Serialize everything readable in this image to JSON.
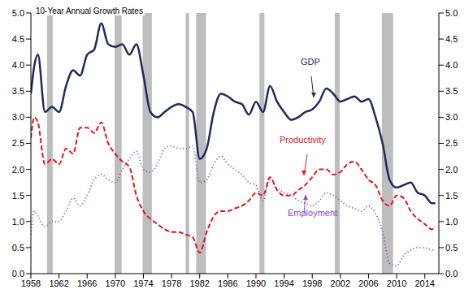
{
  "chart_data": {
    "type": "line",
    "title": "10-Year Annual Growth Rates",
    "x": [
      1958,
      1958.5,
      1959,
      1960,
      1961,
      1962,
      1963,
      1964,
      1965,
      1966,
      1967,
      1968,
      1969,
      1970,
      1971,
      1972,
      1973,
      1974,
      1975,
      1976,
      1977,
      1978,
      1979,
      1980,
      1981,
      1982,
      1983,
      1984,
      1985,
      1986,
      1987,
      1988,
      1989,
      1990,
      1991,
      1992,
      1993,
      1994,
      1995,
      1996,
      1997,
      1998,
      1999,
      2000,
      2001,
      2002,
      2003,
      2004,
      2005,
      2006,
      2007,
      2008,
      2009,
      2010,
      2011,
      2012,
      2013,
      2014,
      2015,
      2015.5
    ],
    "series": [
      {
        "name": "GDP",
        "color": "#1f2a5c",
        "line_style": "solid",
        "values": [
          3.45,
          4.0,
          4.2,
          3.1,
          3.2,
          3.1,
          3.6,
          3.9,
          3.8,
          4.2,
          4.3,
          4.8,
          4.4,
          4.35,
          4.4,
          4.2,
          4.4,
          3.8,
          3.1,
          3.0,
          3.1,
          3.2,
          3.25,
          3.2,
          3.1,
          2.2,
          2.4,
          3.1,
          3.45,
          3.4,
          3.3,
          3.25,
          3.05,
          3.3,
          3.1,
          3.6,
          3.3,
          3.1,
          2.95,
          3.0,
          3.1,
          3.15,
          3.3,
          3.55,
          3.45,
          3.3,
          3.35,
          3.4,
          3.3,
          3.35,
          3.0,
          2.5,
          1.8,
          1.65,
          1.7,
          1.75,
          1.55,
          1.5,
          1.35,
          1.35
        ]
      },
      {
        "name": "Productivity",
        "color": "#e0161b",
        "line_style": "dashed",
        "values": [
          2.6,
          3.0,
          2.9,
          2.1,
          2.2,
          2.1,
          2.4,
          2.3,
          2.8,
          2.8,
          2.7,
          2.9,
          2.5,
          2.3,
          2.15,
          2.05,
          1.5,
          1.2,
          1.05,
          0.95,
          0.85,
          0.8,
          0.8,
          0.75,
          0.7,
          0.4,
          0.8,
          1.1,
          1.2,
          1.2,
          1.25,
          1.3,
          1.4,
          1.55,
          1.5,
          1.85,
          1.6,
          1.5,
          1.5,
          1.6,
          1.7,
          1.85,
          2.0,
          2.0,
          1.9,
          1.95,
          2.1,
          2.15,
          2.0,
          1.8,
          1.7,
          1.4,
          1.3,
          1.5,
          1.45,
          1.2,
          1.05,
          0.95,
          0.85,
          0.9
        ]
      },
      {
        "name": "Employment",
        "color": "#8a4bbf",
        "line_style": "dotted",
        "values": [
          0.75,
          1.2,
          1.1,
          0.9,
          1.0,
          1.0,
          1.2,
          1.45,
          1.3,
          1.5,
          1.8,
          1.9,
          1.8,
          1.75,
          2.0,
          2.2,
          2.35,
          2.0,
          1.95,
          2.1,
          2.4,
          2.45,
          2.4,
          2.4,
          2.45,
          1.75,
          1.8,
          2.1,
          2.25,
          2.1,
          2.0,
          1.9,
          1.75,
          1.7,
          1.4,
          1.8,
          1.65,
          1.55,
          1.5,
          1.4,
          1.35,
          1.3,
          1.4,
          1.55,
          1.5,
          1.4,
          1.3,
          1.25,
          1.2,
          1.3,
          1.15,
          0.8,
          0.2,
          0.15,
          0.35,
          0.45,
          0.5,
          0.5,
          0.45,
          0.45
        ]
      }
    ],
    "recessions": [
      [
        1960.3,
        1961.1
      ],
      [
        1969.9,
        1970.9
      ],
      [
        1973.9,
        1975.2
      ],
      [
        1980.0,
        1980.5
      ],
      [
        1981.5,
        1982.9
      ],
      [
        1990.5,
        1991.2
      ],
      [
        2001.2,
        2001.9
      ],
      [
        2007.9,
        2009.5
      ]
    ],
    "xlim": [
      1958,
      2016
    ],
    "xticks": [
      1958,
      1962,
      1966,
      1970,
      1974,
      1978,
      1982,
      1986,
      1990,
      1994,
      1998,
      2002,
      2006,
      2010,
      2014
    ],
    "ylim": [
      0,
      5
    ],
    "yticks": [
      {
        "value": 0,
        "label": "0.0"
      },
      {
        "value": 0.5,
        "label": "0.5"
      },
      {
        "value": 1,
        "label": "1.0"
      },
      {
        "value": 1.5,
        "label": "1.5"
      },
      {
        "value": 2,
        "label": "2.0"
      },
      {
        "value": 2.5,
        "label": "2.5"
      },
      {
        "value": 3,
        "label": "3.0"
      },
      {
        "value": 3.5,
        "label": "3.5"
      },
      {
        "value": 4,
        "label": "4.0"
      },
      {
        "value": 4.5,
        "label": "4.5"
      },
      {
        "value": 5,
        "label": "5.0"
      }
    ],
    "y2lim": [
      0,
      5
    ],
    "y2ticks": [
      {
        "value": 0,
        "label": "0.0"
      },
      {
        "value": 0.5,
        "label": "0.5"
      },
      {
        "value": 1,
        "label": "1.0"
      },
      {
        "value": 1.5,
        "label": "1.5"
      },
      {
        "value": 2,
        "label": "2.0"
      },
      {
        "value": 2.5,
        "label": "2.5"
      },
      {
        "value": 3,
        "label": "3.0"
      },
      {
        "value": 3.5,
        "label": "3.5"
      },
      {
        "value": 4,
        "label": "4.0"
      },
      {
        "value": 4.5,
        "label": "4.5"
      },
      {
        "value": 5,
        "label": "5.0"
      }
    ],
    "grid": false
  }
}
